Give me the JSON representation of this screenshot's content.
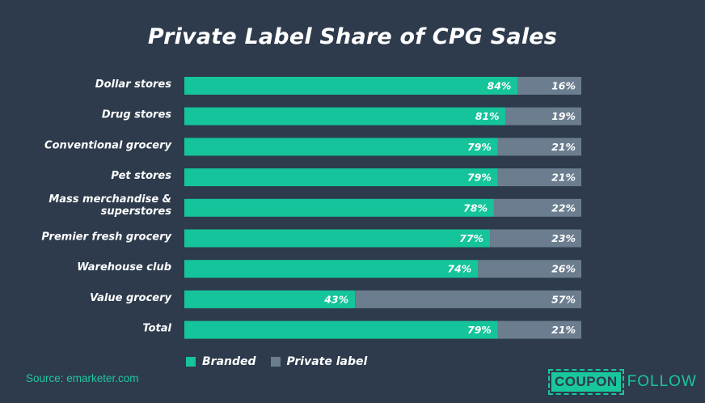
{
  "title": "Private Label Share of CPG Sales",
  "source": "Source: emarketer.com",
  "logo": {
    "box_text": "COUPON",
    "tail_text": "FOLLOW"
  },
  "colors": {
    "branded": "#15c49a",
    "private_label": "#6b7d8f",
    "background": "#2d3b4c"
  },
  "legend": {
    "items": [
      "Branded",
      "Private label"
    ],
    "placement": "bottom"
  },
  "chart_data": {
    "type": "bar",
    "orientation": "horizontal",
    "stacked": true,
    "title": "Private Label Share of CPG Sales",
    "categories": [
      [
        "Dollar stores"
      ],
      [
        "Drug stores"
      ],
      [
        "Conventional grocery"
      ],
      [
        "Pet stores"
      ],
      [
        "Mass merchandise &",
        "superstores"
      ],
      [
        "Premier fresh grocery"
      ],
      [
        "Warehouse club"
      ],
      [
        "Value grocery"
      ],
      [
        "Total"
      ]
    ],
    "series": [
      {
        "name": "Branded",
        "values": [
          84,
          81,
          79,
          79,
          78,
          77,
          74,
          43,
          79
        ]
      },
      {
        "name": "Private label",
        "values": [
          16,
          19,
          21,
          21,
          22,
          23,
          26,
          57,
          21
        ]
      }
    ],
    "xlim": [
      0,
      100
    ],
    "unit": "%"
  }
}
